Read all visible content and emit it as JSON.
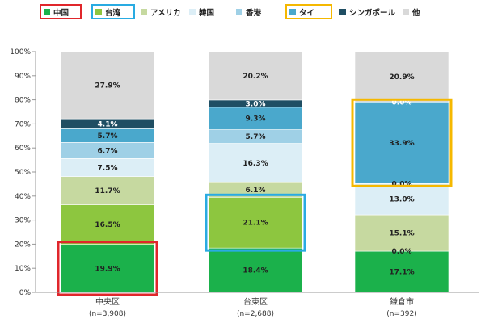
{
  "chart_data": {
    "type": "bar",
    "stacked": true,
    "categories": [
      "中央区",
      "台東区",
      "鎌倉市"
    ],
    "category_n": [
      "(n=3,908)",
      "(n=2,688)",
      "(n=392)"
    ],
    "ylim": [
      0,
      100
    ],
    "y_ticks": [
      "0%",
      "10%",
      "20%",
      "30%",
      "40%",
      "50%",
      "60%",
      "70%",
      "80%",
      "90%",
      "100%"
    ],
    "grid": false,
    "legend_position": "top",
    "series": [
      {
        "name": "中国",
        "color": "#1bb14b",
        "values": [
          19.9,
          18.4,
          17.1
        ],
        "labels": [
          "19.9%",
          "18.4%",
          "17.1%"
        ],
        "legend_box_color": "#e0262b"
      },
      {
        "name": "台湾",
        "color": "#8dc63f",
        "values": [
          16.5,
          21.1,
          0.0
        ],
        "labels": [
          "16.5%",
          "21.1%",
          "0.0%"
        ],
        "legend_box_color": "#29abe2"
      },
      {
        "name": "アメリカ",
        "color": "#c6d9a0",
        "values": [
          11.7,
          6.1,
          15.1
        ],
        "labels": [
          "11.7%",
          "6.1%",
          "15.1%"
        ]
      },
      {
        "name": "韓国",
        "color": "#dceef6",
        "values": [
          7.5,
          16.3,
          13.0
        ],
        "labels": [
          "7.5%",
          "16.3%",
          "13.0%"
        ]
      },
      {
        "name": "香港",
        "color": "#9fd0e6",
        "values": [
          6.7,
          5.7,
          0.0
        ],
        "labels": [
          "6.7%",
          "5.7%",
          "0.0%"
        ]
      },
      {
        "name": "タイ",
        "color": "#4aa8cc",
        "values": [
          5.7,
          9.3,
          33.9
        ],
        "labels": [
          "5.7%",
          "9.3%",
          "33.9%"
        ],
        "legend_box_color": "#f5b800"
      },
      {
        "name": "シンガポール",
        "color": "#1f4e63",
        "values": [
          4.1,
          3.0,
          0.0
        ],
        "labels": [
          "4.1%",
          "3.0%",
          "0.0%"
        ]
      },
      {
        "name": "他",
        "color": "#d9d9d9",
        "values": [
          27.9,
          20.2,
          20.9
        ],
        "labels": [
          "27.9%",
          "20.2%",
          "20.9%"
        ]
      }
    ],
    "highlights": [
      {
        "category": "中央区",
        "series": "中国",
        "color": "#e0262b"
      },
      {
        "category": "台東区",
        "series": "台湾",
        "color": "#29abe2"
      },
      {
        "category": "鎌倉市",
        "series": "タイ",
        "color": "#f5b800"
      }
    ]
  }
}
